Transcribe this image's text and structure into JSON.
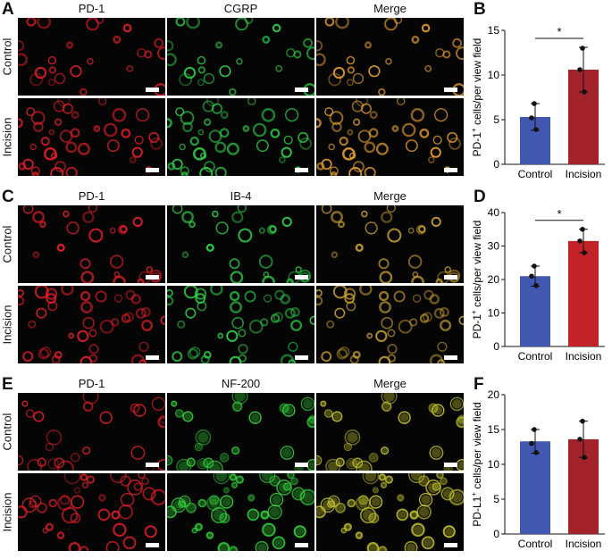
{
  "figure": {
    "panels": [
      {
        "letter": "A",
        "channels": [
          "PD-1",
          "CGRP",
          "Merge"
        ],
        "rows": [
          "Control",
          "Incision"
        ],
        "scale_bar": "50 μm",
        "channel_colors": [
          "#e8202a",
          "#2fd24a",
          "#e8a030"
        ]
      },
      {
        "letter": "C",
        "channels": [
          "PD-1",
          "IB-4",
          "Merge"
        ],
        "rows": [
          "Control",
          "Incision"
        ],
        "scale_bar": "50 μm",
        "channel_colors": [
          "#e8202a",
          "#2fd24a",
          "#c8a030"
        ]
      },
      {
        "letter": "E",
        "channels": [
          "PD-1",
          "NF-200",
          "Merge"
        ],
        "rows": [
          "Control",
          "Incision"
        ],
        "scale_bar": "50 μm",
        "channel_colors": [
          "#e8202a",
          "#38e040",
          "#d0d030"
        ]
      }
    ]
  },
  "chart_data": [
    {
      "letter": "B",
      "type": "bar",
      "categories": [
        "Control",
        "Incision"
      ],
      "values": [
        5.3,
        10.6
      ],
      "errors": [
        1.5,
        2.5
      ],
      "points": [
        [
          6.8,
          5.2,
          3.9
        ],
        [
          13.0,
          10.6,
          8.1
        ]
      ],
      "ylabel": "PD-1+ cells/per view field",
      "ylabel_main": "PD-1",
      "ylabel_sup": "+",
      "ylabel_rest": " cells/per view field",
      "ylim": [
        0,
        15
      ],
      "yticks": [
        0,
        5,
        10,
        15
      ],
      "significance": "*",
      "colors": [
        "#4157b0",
        "#a3232a"
      ]
    },
    {
      "letter": "D",
      "type": "bar",
      "categories": [
        "Control",
        "Incision"
      ],
      "values": [
        21.0,
        31.5
      ],
      "errors": [
        3.0,
        3.5
      ],
      "points": [
        [
          24.0,
          21.0,
          18.2
        ],
        [
          35.0,
          31.5,
          28.0
        ]
      ],
      "ylabel": "PD-1+ cells/per view field",
      "ylabel_main": "PD-1",
      "ylabel_sup": "+",
      "ylabel_rest": " cells/per view field",
      "ylim": [
        0,
        40
      ],
      "yticks": [
        0,
        10,
        20,
        30,
        40
      ],
      "significance": "*",
      "colors": [
        "#4157b0",
        "#c12328"
      ]
    },
    {
      "letter": "F",
      "type": "bar",
      "categories": [
        "Control",
        "Incision"
      ],
      "values": [
        13.3,
        13.6
      ],
      "errors": [
        1.7,
        2.6
      ],
      "points": [
        [
          15.0,
          13.0,
          11.7
        ],
        [
          16.2,
          13.6,
          11.0
        ]
      ],
      "ylabel": "PD-L1+ cells/per view field",
      "ylabel_main": "PD-L1",
      "ylabel_sup": "+",
      "ylabel_rest": " cells/per view field",
      "ylim": [
        0,
        20
      ],
      "yticks": [
        0,
        5,
        10,
        15,
        20
      ],
      "significance": "",
      "colors": [
        "#4157b0",
        "#a3232a"
      ]
    }
  ]
}
